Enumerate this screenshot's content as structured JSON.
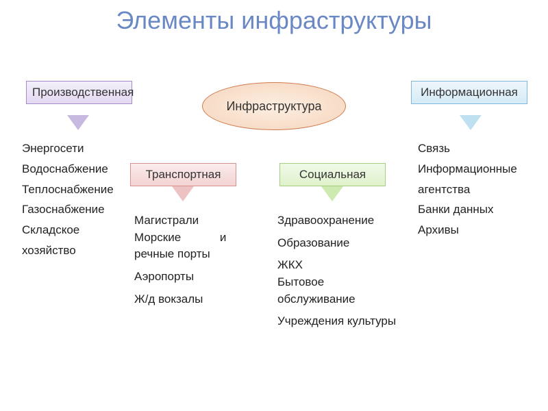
{
  "title": "Элементы инфраструктуры",
  "central": {
    "label": "Инфраструктура"
  },
  "categories": {
    "production": {
      "label": "Производственная",
      "color_bg_top": "#f3eff9",
      "color_bg_bot": "#e4d9f2",
      "border": "#a78bc8",
      "arrow": "#c8b9e0",
      "items": [
        "Энергосети",
        "Водоснабжение",
        "Теплоснабжение",
        "Газоснабжение",
        "Складское хозяйство"
      ]
    },
    "information": {
      "label": "Информационная",
      "color_bg_top": "#eef6fb",
      "color_bg_bot": "#d5ebf6",
      "border": "#7fb8d8",
      "arrow": "#bee0f0",
      "items": [
        "Связь",
        "Информационные агентства",
        "Банки данных",
        "Архивы"
      ]
    },
    "transport": {
      "label": "Транспортная",
      "color_bg_top": "#fbecec",
      "color_bg_bot": "#f4d2d2",
      "border": "#d69292",
      "arrow": "#edc2c2",
      "items": [
        "Магистрали",
        "Морские            и речные порты",
        "Аэропорты",
        "Ж/д вокзалы"
      ]
    },
    "social": {
      "label": "Социальная",
      "color_bg_top": "#f0f9e8",
      "color_bg_bot": "#e0f2cc",
      "border": "#a5cd82",
      "arrow": "#cdeab0",
      "items": [
        "Здравоохранение",
        "Образование",
        "ЖКХ",
        "Бытовое обслуживание",
        "Учреждения культуры"
      ]
    }
  },
  "style": {
    "title_color": "#6a88c4",
    "title_fontsize": 36,
    "body_fontsize": 17,
    "background": "#ffffff",
    "central_border": "#d07a4a",
    "central_fill_inner": "#fceee1",
    "central_fill_outer": "#f6d5bd"
  }
}
